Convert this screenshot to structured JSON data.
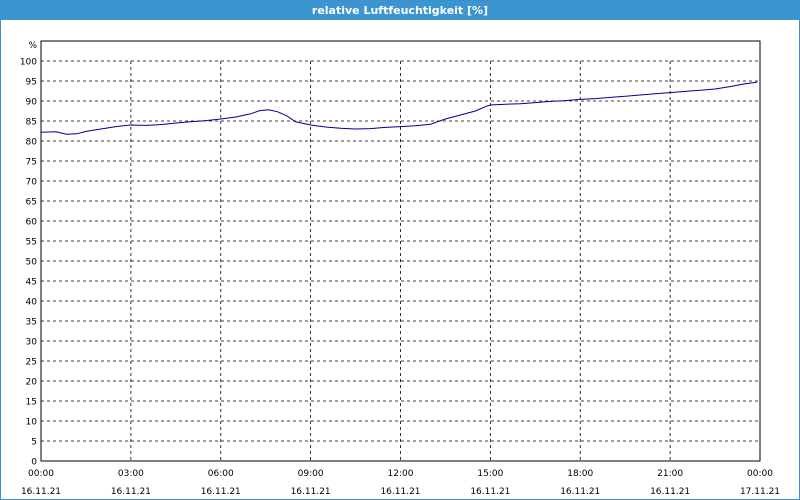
{
  "window": {
    "title": "relative Luftfeuchtigkeit [%]"
  },
  "chart_data": {
    "type": "line",
    "title": "relative Luftfeuchtigkeit [%]",
    "ylabel": "%",
    "xlabel": "",
    "ylim": [
      0,
      100
    ],
    "y_ticks": [
      0,
      5,
      10,
      15,
      20,
      25,
      30,
      35,
      40,
      45,
      50,
      55,
      60,
      65,
      70,
      75,
      80,
      85,
      90,
      95,
      100
    ],
    "x_range_hours": [
      0,
      24
    ],
    "x_ticks": [
      {
        "time": "00:00",
        "date": "16.11.21"
      },
      {
        "time": "03:00",
        "date": "16.11.21"
      },
      {
        "time": "06:00",
        "date": "16.11.21"
      },
      {
        "time": "09:00",
        "date": "16.11.21"
      },
      {
        "time": "12:00",
        "date": "16.11.21"
      },
      {
        "time": "15:00",
        "date": "16.11.21"
      },
      {
        "time": "18:00",
        "date": "16.11.21"
      },
      {
        "time": "21:00",
        "date": "16.11.21"
      },
      {
        "time": "00:00",
        "date": "17.11.21"
      }
    ],
    "grid": true,
    "series": [
      {
        "color": "#00008b",
        "x": [
          0,
          0.5,
          0.85,
          1.2,
          1.5,
          2.0,
          2.5,
          3.0,
          3.5,
          4.0,
          4.5,
          5.0,
          5.5,
          6.0,
          6.5,
          7.0,
          7.3,
          7.6,
          7.9,
          8.2,
          8.5,
          9.0,
          9.5,
          10.0,
          10.5,
          11.0,
          11.5,
          12.0,
          12.5,
          13.0,
          13.5,
          14.0,
          14.5,
          14.9,
          15.0,
          15.5,
          16.0,
          16.5,
          17.0,
          17.5,
          18.0,
          18.5,
          19.0,
          19.5,
          20.0,
          20.5,
          21.0,
          21.5,
          22.0,
          22.5,
          23.0,
          23.5,
          23.9
        ],
        "values": [
          82.2,
          82.3,
          81.7,
          81.8,
          82.4,
          83.0,
          83.6,
          84.0,
          83.9,
          84.1,
          84.5,
          84.8,
          85.1,
          85.5,
          86.0,
          86.8,
          87.6,
          87.8,
          87.3,
          86.3,
          84.8,
          84.0,
          83.5,
          83.2,
          83.0,
          83.1,
          83.4,
          83.6,
          83.8,
          84.2,
          85.5,
          86.5,
          87.5,
          88.8,
          89.0,
          89.2,
          89.3,
          89.6,
          89.9,
          90.1,
          90.4,
          90.6,
          90.9,
          91.2,
          91.5,
          91.8,
          92.1,
          92.4,
          92.7,
          93.0,
          93.6,
          94.3,
          94.7
        ]
      }
    ]
  }
}
